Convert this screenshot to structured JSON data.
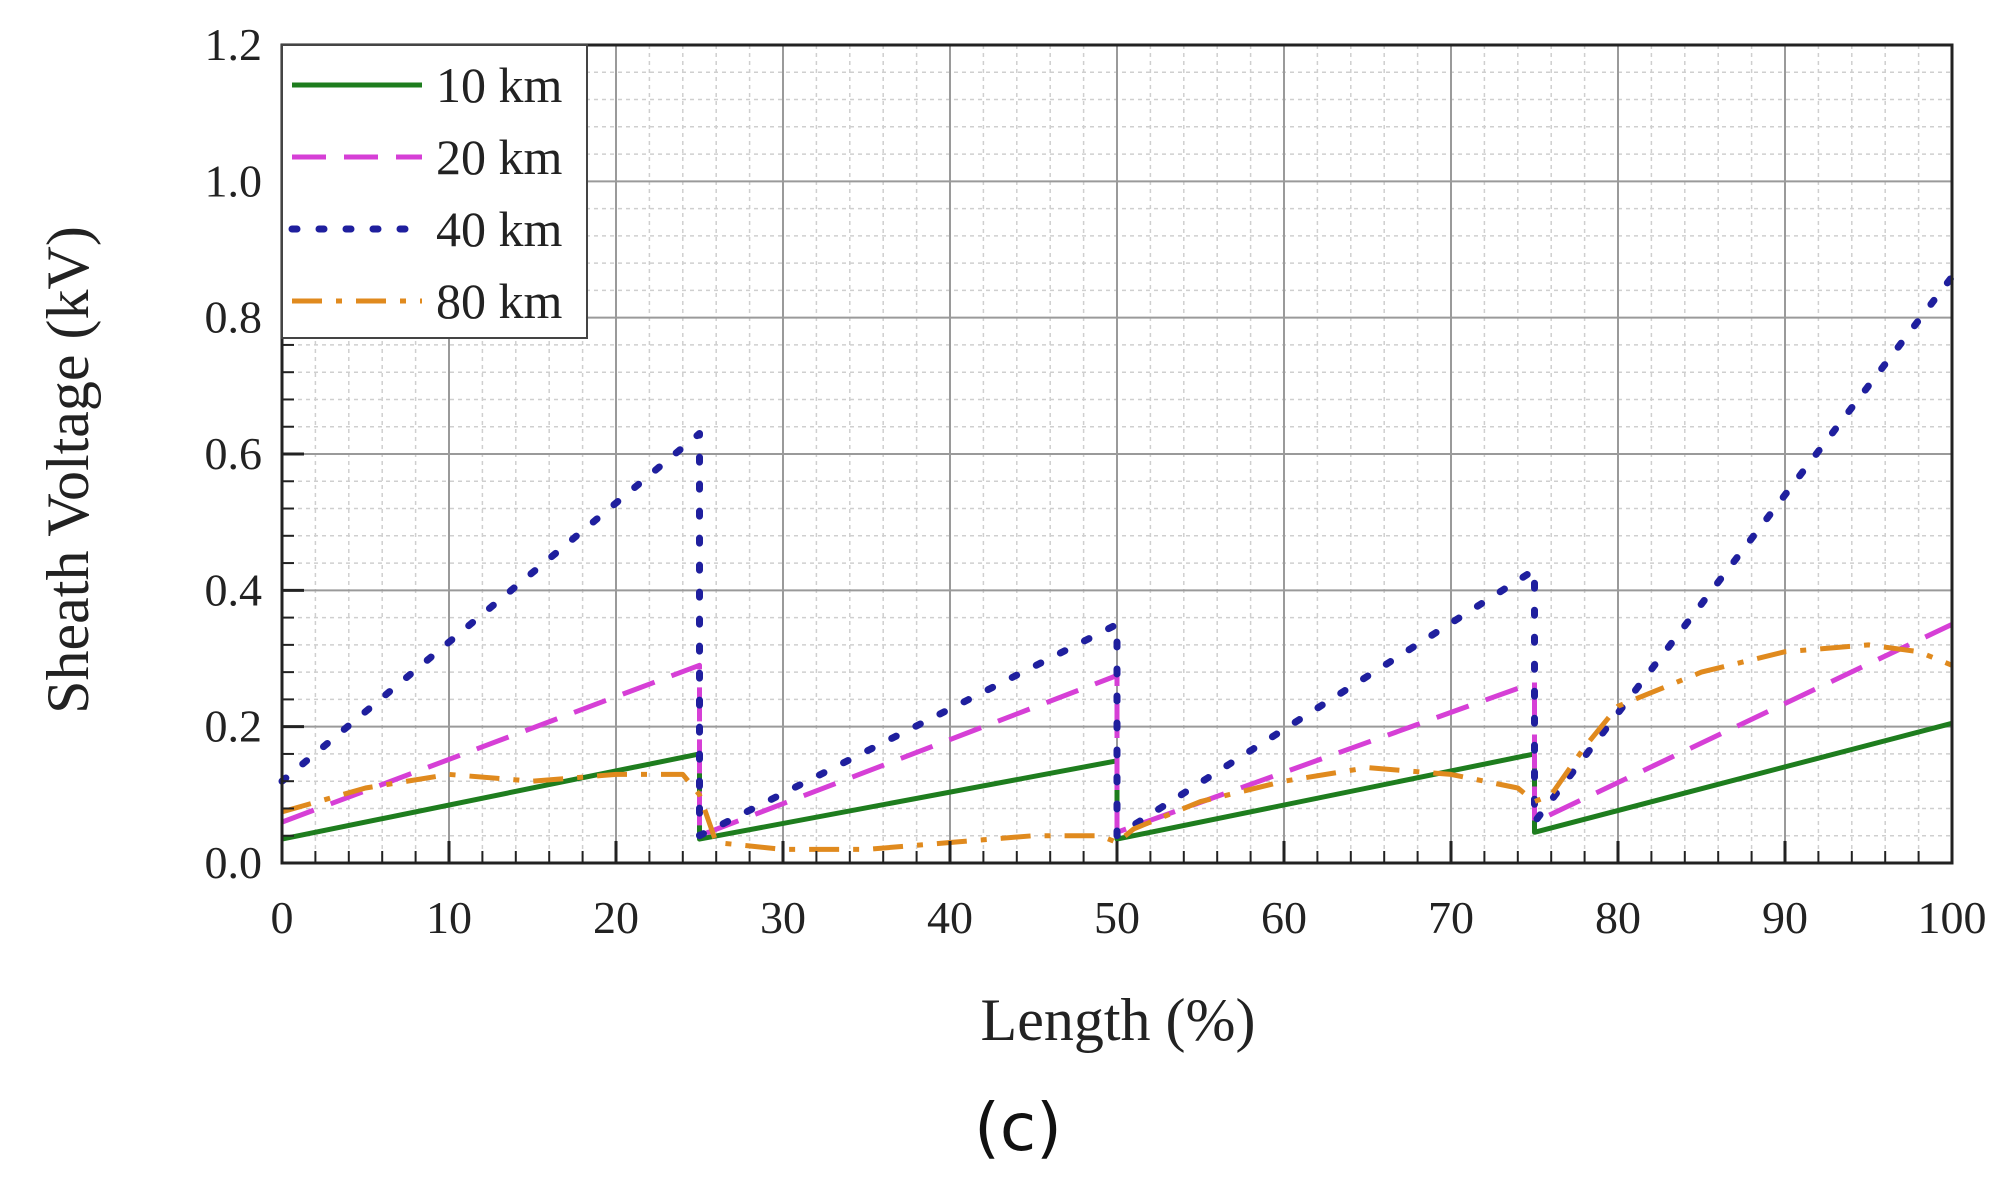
{
  "chart_data": {
    "type": "line",
    "title": "",
    "xlabel": "Length (%)",
    "ylabel": "Sheath Voltage (kV)",
    "caption": "(c)",
    "xlim": [
      0,
      100
    ],
    "ylim": [
      0,
      1.2
    ],
    "xticks": [
      "0",
      "10",
      "20",
      "30",
      "40",
      "50",
      "60",
      "70",
      "80",
      "90",
      "100"
    ],
    "yticks": [
      "0.0",
      "0.2",
      "0.4",
      "0.6",
      "0.8",
      "1.0",
      "1.2"
    ],
    "grid": true,
    "legend_position": "top-left",
    "series": [
      {
        "name": "10 km",
        "color": "#1e7d1e",
        "style": "solid",
        "x": [
          0,
          25,
          25,
          50,
          50,
          75,
          75,
          100
        ],
        "y": [
          0.035,
          0.16,
          0.035,
          0.15,
          0.035,
          0.16,
          0.045,
          0.205
        ]
      },
      {
        "name": "20 km",
        "color": "#d63fd6",
        "style": "dash",
        "x": [
          0,
          25,
          25,
          50,
          50,
          75,
          75,
          100
        ],
        "y": [
          0.06,
          0.29,
          0.04,
          0.275,
          0.045,
          0.265,
          0.06,
          0.35
        ]
      },
      {
        "name": "40 km",
        "color": "#1f1f9e",
        "style": "dot",
        "x": [
          0,
          25,
          25,
          50,
          50,
          75,
          75,
          100
        ],
        "y": [
          0.12,
          0.63,
          0.04,
          0.35,
          0.04,
          0.43,
          0.06,
          0.86
        ]
      },
      {
        "name": "80 km",
        "color": "#e08a1e",
        "style": "dashdot",
        "x": [
          0,
          5,
          10,
          15,
          20,
          24,
          25,
          26,
          30,
          35,
          40,
          45,
          49,
          50,
          51,
          55,
          60,
          65,
          70,
          74,
          75,
          76,
          78,
          80,
          85,
          90,
          95,
          98,
          100
        ],
        "y": [
          0.075,
          0.11,
          0.13,
          0.12,
          0.13,
          0.13,
          0.1,
          0.03,
          0.02,
          0.02,
          0.03,
          0.04,
          0.04,
          0.03,
          0.05,
          0.09,
          0.12,
          0.14,
          0.13,
          0.11,
          0.09,
          0.1,
          0.17,
          0.23,
          0.28,
          0.31,
          0.32,
          0.31,
          0.29
        ]
      }
    ]
  }
}
